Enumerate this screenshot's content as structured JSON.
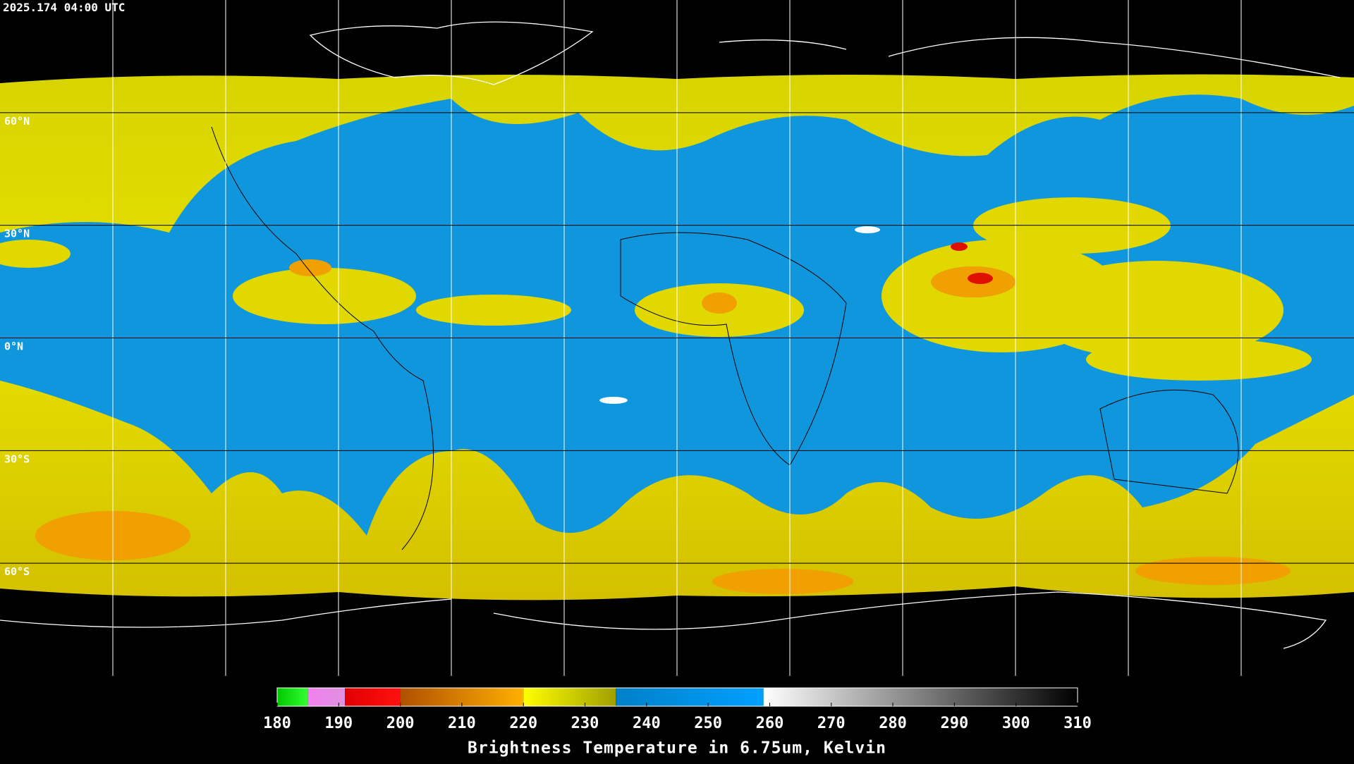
{
  "timestamp": "2025.174 04:00 UTC",
  "map": {
    "lat_labels": [
      "60°N",
      "30°N",
      "0°N",
      "30°S",
      "60°S"
    ]
  },
  "colorbar": {
    "title": "Brightness Temperature in 6.75um, Kelvin",
    "range": [
      180,
      310
    ],
    "ticks": [
      180,
      190,
      200,
      210,
      220,
      230,
      240,
      250,
      260,
      270,
      280,
      290,
      300,
      310
    ],
    "segments": [
      {
        "from": 180,
        "to": 185,
        "colors": [
          "#00c800",
          "#30ff30"
        ]
      },
      {
        "from": 185,
        "to": 191,
        "colors": [
          "#f080f0",
          "#e090e0"
        ]
      },
      {
        "from": 191,
        "to": 200,
        "colors": [
          "#e00000",
          "#ff1010"
        ]
      },
      {
        "from": 200,
        "to": 220,
        "colors": [
          "#b05000",
          "#ffb000"
        ]
      },
      {
        "from": 220,
        "to": 235,
        "colors": [
          "#ffff00",
          "#a0a000"
        ]
      },
      {
        "from": 235,
        "to": 259,
        "colors": [
          "#0080c8",
          "#00a0ff"
        ]
      },
      {
        "from": 259,
        "to": 310,
        "colors": [
          "#ffffff",
          "#000000"
        ]
      }
    ]
  }
}
